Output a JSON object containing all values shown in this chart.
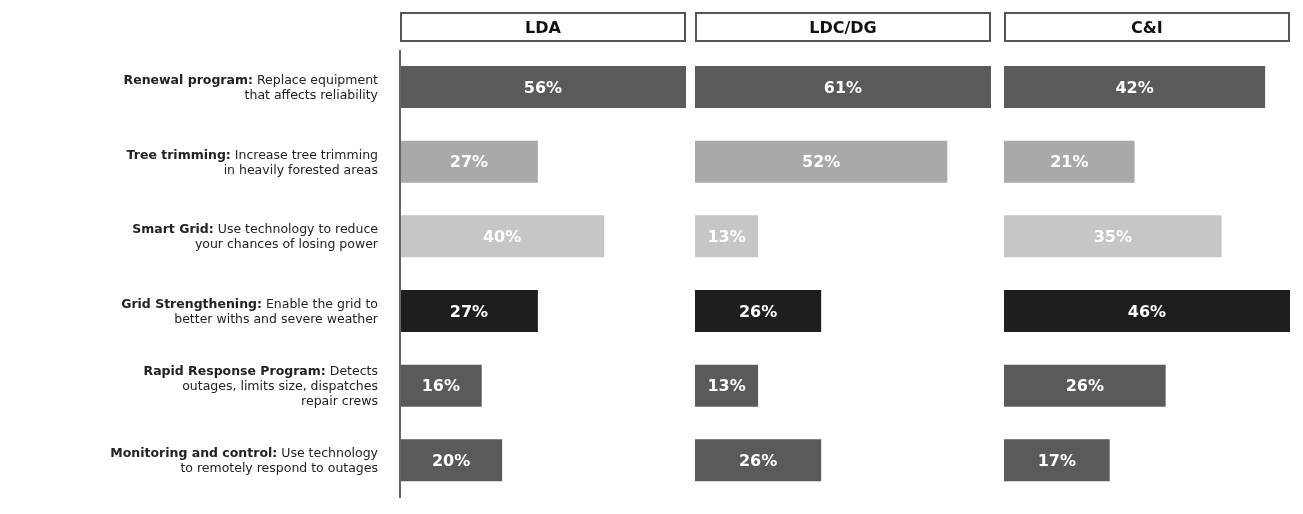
{
  "chart_data": [
    {
      "type": "bar",
      "orientation": "horizontal",
      "title": "LDA",
      "categories": [
        "Renewal program: Replace equipment that affects reliability",
        "Tree trimming: Increase tree trimming in heavily forested areas",
        "Smart Grid: Use technology to reduce your chances of losing power",
        "Grid Strengthening: Enable the grid to better withs and severe weather",
        "Rapid Response Program: Detects outages, limits size, dispatches repair crews",
        "Monitoring and control: Use technology to remotely respond to outages"
      ],
      "values": [
        56,
        27,
        40,
        27,
        16,
        20
      ],
      "value_labels": [
        "56%",
        "27%",
        "40%",
        "27%",
        "16%",
        "20%"
      ],
      "colors": [
        "#5a5a5a",
        "#a9a9a9",
        "#c6c6c6",
        "#1e1e1e",
        "#5a5a5a",
        "#5a5a5a"
      ],
      "grid": false,
      "legend": false
    },
    {
      "type": "bar",
      "orientation": "horizontal",
      "title": "LDC/DG",
      "tick_labels": false,
      "categories": [
        null,
        null,
        null,
        null,
        null,
        null
      ],
      "values": [
        61,
        52,
        13,
        26,
        13,
        26
      ],
      "value_labels": [
        "61%",
        "52%",
        "13%",
        "26%",
        "13%",
        "26%"
      ],
      "colors": [
        "#5a5a5a",
        "#a9a9a9",
        "#c6c6c6",
        "#1e1e1e",
        "#5a5a5a",
        "#5a5a5a"
      ],
      "grid": false,
      "legend": false
    },
    {
      "type": "bar",
      "orientation": "horizontal",
      "title": "C&I",
      "tick_labels": false,
      "categories": [
        null,
        null,
        null,
        null,
        null,
        null
      ],
      "values": [
        42,
        21,
        35,
        46,
        26,
        17
      ],
      "value_labels": [
        "42%",
        "21%",
        "35%",
        "46%",
        "26%",
        "17%"
      ],
      "colors": [
        "#5a5a5a",
        "#a9a9a9",
        "#c6c6c6",
        "#1e1e1e",
        "#5a5a5a",
        "#5a5a5a"
      ],
      "grid": false,
      "legend": false
    }
  ]
}
